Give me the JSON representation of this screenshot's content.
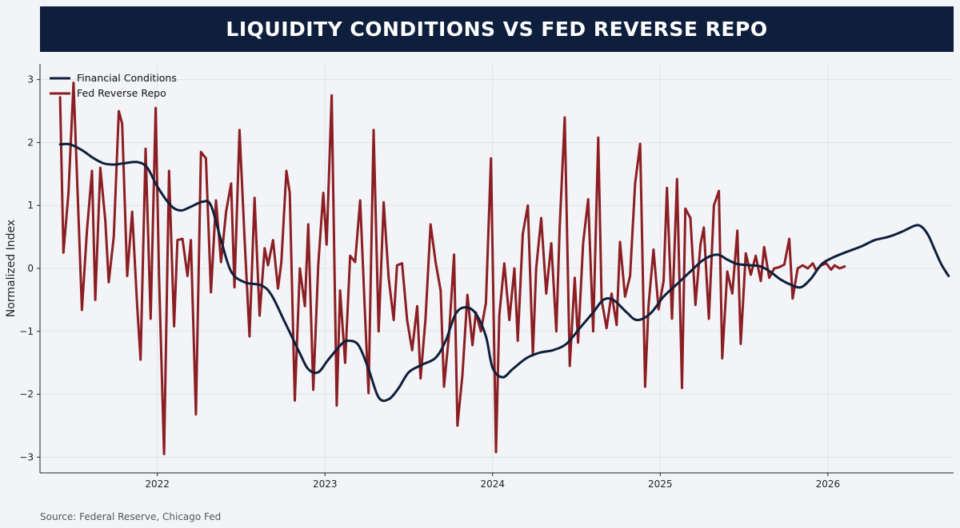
{
  "title": "LIQUIDITY CONDITIONS VS FED REVERSE REPO",
  "source": "Source: Federal Reserve, Chicago Fed",
  "colors": {
    "banner": "#0d1f3c",
    "financial": "#0d1f3c",
    "repo": "#8b1e22",
    "background": "#f2f4f7"
  },
  "chart_data": {
    "type": "line",
    "title": "LIQUIDITY CONDITIONS VS FED REVERSE REPO",
    "xlabel": "",
    "ylabel": "Normalized Index",
    "xlim": [
      2021.3,
      2026.75
    ],
    "ylim": [
      -3.25,
      3.25
    ],
    "xticks": [
      2022,
      2023,
      2024,
      2025,
      2026
    ],
    "xtick_labels": [
      "2022",
      "2023",
      "2024",
      "2025",
      "2026"
    ],
    "yticks": [
      -3,
      -2,
      -1,
      0,
      1,
      2,
      3
    ],
    "ytick_labels": [
      "−3",
      "−2",
      "−1",
      "0",
      "1",
      "2",
      "3"
    ],
    "grid": true,
    "legend_position": "top-left",
    "series": [
      {
        "name": "Financial Conditions",
        "color": "#0d1f3c",
        "points": [
          [
            2021.42,
            1.97
          ],
          [
            2021.48,
            1.97
          ],
          [
            2021.55,
            1.88
          ],
          [
            2021.62,
            1.75
          ],
          [
            2021.68,
            1.67
          ],
          [
            2021.74,
            1.65
          ],
          [
            2021.8,
            1.67
          ],
          [
            2021.88,
            1.69
          ],
          [
            2021.94,
            1.6
          ],
          [
            2022.0,
            1.3
          ],
          [
            2022.08,
            1.0
          ],
          [
            2022.14,
            0.92
          ],
          [
            2022.2,
            0.98
          ],
          [
            2022.27,
            1.06
          ],
          [
            2022.32,
            1.0
          ],
          [
            2022.38,
            0.45
          ],
          [
            2022.44,
            -0.05
          ],
          [
            2022.52,
            -0.22
          ],
          [
            2022.62,
            -0.27
          ],
          [
            2022.68,
            -0.42
          ],
          [
            2022.76,
            -0.85
          ],
          [
            2022.85,
            -1.35
          ],
          [
            2022.9,
            -1.6
          ],
          [
            2022.96,
            -1.65
          ],
          [
            2023.02,
            -1.45
          ],
          [
            2023.1,
            -1.2
          ],
          [
            2023.14,
            -1.15
          ],
          [
            2023.2,
            -1.22
          ],
          [
            2023.26,
            -1.6
          ],
          [
            2023.32,
            -2.05
          ],
          [
            2023.38,
            -2.08
          ],
          [
            2023.44,
            -1.9
          ],
          [
            2023.5,
            -1.65
          ],
          [
            2023.58,
            -1.53
          ],
          [
            2023.66,
            -1.42
          ],
          [
            2023.72,
            -1.15
          ],
          [
            2023.78,
            -0.72
          ],
          [
            2023.84,
            -0.62
          ],
          [
            2023.9,
            -0.72
          ],
          [
            2023.96,
            -1.08
          ],
          [
            2024.0,
            -1.58
          ],
          [
            2024.06,
            -1.73
          ],
          [
            2024.12,
            -1.6
          ],
          [
            2024.2,
            -1.43
          ],
          [
            2024.28,
            -1.34
          ],
          [
            2024.36,
            -1.3
          ],
          [
            2024.44,
            -1.2
          ],
          [
            2024.52,
            -0.95
          ],
          [
            2024.6,
            -0.7
          ],
          [
            2024.66,
            -0.5
          ],
          [
            2024.72,
            -0.5
          ],
          [
            2024.8,
            -0.7
          ],
          [
            2024.86,
            -0.82
          ],
          [
            2024.94,
            -0.72
          ],
          [
            2025.02,
            -0.45
          ],
          [
            2025.1,
            -0.25
          ],
          [
            2025.18,
            -0.05
          ],
          [
            2025.26,
            0.14
          ],
          [
            2025.34,
            0.22
          ],
          [
            2025.4,
            0.14
          ],
          [
            2025.46,
            0.07
          ],
          [
            2025.54,
            0.05
          ],
          [
            2025.6,
            0.03
          ],
          [
            2025.66,
            -0.06
          ],
          [
            2025.72,
            -0.18
          ],
          [
            2025.78,
            -0.26
          ],
          [
            2025.84,
            -0.3
          ],
          [
            2025.9,
            -0.16
          ],
          [
            2025.96,
            0.06
          ],
          [
            2026.02,
            0.16
          ],
          [
            2026.1,
            0.25
          ],
          [
            2026.2,
            0.35
          ],
          [
            2026.28,
            0.45
          ],
          [
            2026.36,
            0.5
          ],
          [
            2026.44,
            0.58
          ],
          [
            2026.52,
            0.68
          ],
          [
            2026.56,
            0.66
          ],
          [
            2026.6,
            0.52
          ],
          [
            2026.64,
            0.28
          ],
          [
            2026.68,
            0.05
          ],
          [
            2026.72,
            -0.12
          ]
        ]
      },
      {
        "name": "Fed Reverse Repo",
        "color": "#8b1e22",
        "points": [
          [
            2021.42,
            2.72
          ],
          [
            2021.44,
            0.25
          ],
          [
            2021.47,
            1.2
          ],
          [
            2021.5,
            2.95
          ],
          [
            2021.53,
            0.8
          ],
          [
            2021.55,
            -0.66
          ],
          [
            2021.58,
            0.6
          ],
          [
            2021.61,
            1.55
          ],
          [
            2021.63,
            -0.5
          ],
          [
            2021.66,
            1.6
          ],
          [
            2021.69,
            0.75
          ],
          [
            2021.71,
            -0.22
          ],
          [
            2021.74,
            0.5
          ],
          [
            2021.77,
            2.5
          ],
          [
            2021.79,
            2.3
          ],
          [
            2021.82,
            -0.12
          ],
          [
            2021.85,
            0.9
          ],
          [
            2021.88,
            -0.6
          ],
          [
            2021.9,
            -1.45
          ],
          [
            2021.93,
            1.9
          ],
          [
            2021.96,
            -0.8
          ],
          [
            2021.99,
            2.55
          ],
          [
            2022.01,
            -0.12
          ],
          [
            2022.04,
            -2.95
          ],
          [
            2022.07,
            1.55
          ],
          [
            2022.1,
            -0.92
          ],
          [
            2022.12,
            0.45
          ],
          [
            2022.15,
            0.47
          ],
          [
            2022.18,
            -0.12
          ],
          [
            2022.2,
            0.45
          ],
          [
            2022.23,
            -2.32
          ],
          [
            2022.26,
            1.85
          ],
          [
            2022.29,
            1.75
          ],
          [
            2022.32,
            -0.38
          ],
          [
            2022.35,
            1.08
          ],
          [
            2022.38,
            0.1
          ],
          [
            2022.41,
            0.9
          ],
          [
            2022.44,
            1.35
          ],
          [
            2022.46,
            -0.3
          ],
          [
            2022.49,
            2.2
          ],
          [
            2022.52,
            0.5
          ],
          [
            2022.55,
            -1.08
          ],
          [
            2022.58,
            1.12
          ],
          [
            2022.61,
            -0.75
          ],
          [
            2022.64,
            0.32
          ],
          [
            2022.66,
            0.05
          ],
          [
            2022.69,
            0.45
          ],
          [
            2022.72,
            -0.32
          ],
          [
            2022.74,
            0.1
          ],
          [
            2022.77,
            1.55
          ],
          [
            2022.79,
            1.2
          ],
          [
            2022.82,
            -2.1
          ],
          [
            2022.85,
            0.0
          ],
          [
            2022.88,
            -0.6
          ],
          [
            2022.9,
            0.7
          ],
          [
            2022.93,
            -1.93
          ],
          [
            2022.96,
            0.05
          ],
          [
            2022.99,
            1.2
          ],
          [
            2023.01,
            0.38
          ],
          [
            2023.04,
            2.75
          ],
          [
            2023.07,
            -2.18
          ],
          [
            2023.09,
            -0.35
          ],
          [
            2023.12,
            -1.5
          ],
          [
            2023.15,
            0.2
          ],
          [
            2023.18,
            0.1
          ],
          [
            2023.21,
            1.08
          ],
          [
            2023.24,
            -0.8
          ],
          [
            2023.26,
            -1.98
          ],
          [
            2023.29,
            2.2
          ],
          [
            2023.32,
            -1.0
          ],
          [
            2023.35,
            1.05
          ],
          [
            2023.38,
            -0.15
          ],
          [
            2023.41,
            -0.82
          ],
          [
            2023.43,
            0.05
          ],
          [
            2023.46,
            0.08
          ],
          [
            2023.49,
            -0.82
          ],
          [
            2023.52,
            -1.3
          ],
          [
            2023.55,
            -0.6
          ],
          [
            2023.57,
            -1.75
          ],
          [
            2023.6,
            -0.8
          ],
          [
            2023.63,
            0.7
          ],
          [
            2023.66,
            0.1
          ],
          [
            2023.69,
            -0.35
          ],
          [
            2023.71,
            -1.88
          ],
          [
            2023.74,
            -1.05
          ],
          [
            2023.77,
            0.22
          ],
          [
            2023.79,
            -2.5
          ],
          [
            2023.82,
            -1.7
          ],
          [
            2023.85,
            -0.42
          ],
          [
            2023.88,
            -1.22
          ],
          [
            2023.9,
            -0.7
          ],
          [
            2023.93,
            -1.0
          ],
          [
            2023.96,
            -0.55
          ],
          [
            2023.99,
            1.75
          ],
          [
            2024.02,
            -2.92
          ],
          [
            2024.04,
            -0.75
          ],
          [
            2024.07,
            0.08
          ],
          [
            2024.1,
            -0.82
          ],
          [
            2024.13,
            0.0
          ],
          [
            2024.15,
            -1.15
          ],
          [
            2024.18,
            0.55
          ],
          [
            2024.21,
            1.0
          ],
          [
            2024.24,
            -1.38
          ],
          [
            2024.26,
            0.0
          ],
          [
            2024.29,
            0.8
          ],
          [
            2024.32,
            -0.4
          ],
          [
            2024.35,
            0.4
          ],
          [
            2024.38,
            -1.0
          ],
          [
            2024.4,
            0.65
          ],
          [
            2024.43,
            2.4
          ],
          [
            2024.46,
            -1.55
          ],
          [
            2024.49,
            -0.15
          ],
          [
            2024.51,
            -1.18
          ],
          [
            2024.54,
            0.4
          ],
          [
            2024.57,
            1.1
          ],
          [
            2024.6,
            -1.0
          ],
          [
            2024.63,
            2.08
          ],
          [
            2024.65,
            -0.5
          ],
          [
            2024.68,
            -0.95
          ],
          [
            2024.71,
            -0.4
          ],
          [
            2024.74,
            -0.9
          ],
          [
            2024.76,
            0.42
          ],
          [
            2024.79,
            -0.45
          ],
          [
            2024.82,
            -0.12
          ],
          [
            2024.85,
            1.35
          ],
          [
            2024.88,
            1.98
          ],
          [
            2024.91,
            -1.88
          ],
          [
            2024.93,
            -0.6
          ],
          [
            2024.96,
            0.3
          ],
          [
            2024.99,
            -0.65
          ],
          [
            2025.02,
            -0.2
          ],
          [
            2025.04,
            1.28
          ],
          [
            2025.07,
            -0.8
          ],
          [
            2025.1,
            1.42
          ],
          [
            2025.13,
            -1.9
          ],
          [
            2025.15,
            0.95
          ],
          [
            2025.18,
            0.8
          ],
          [
            2025.21,
            -0.58
          ],
          [
            2025.24,
            0.38
          ],
          [
            2025.26,
            0.65
          ],
          [
            2025.29,
            -0.8
          ],
          [
            2025.32,
            1.0
          ],
          [
            2025.35,
            1.23
          ],
          [
            2025.37,
            -1.43
          ],
          [
            2025.4,
            -0.05
          ],
          [
            2025.43,
            -0.4
          ],
          [
            2025.46,
            0.6
          ],
          [
            2025.48,
            -1.2
          ],
          [
            2025.51,
            0.24
          ],
          [
            2025.54,
            -0.1
          ],
          [
            2025.57,
            0.2
          ],
          [
            2025.6,
            -0.2
          ],
          [
            2025.62,
            0.34
          ],
          [
            2025.65,
            -0.15
          ],
          [
            2025.68,
            0.0
          ],
          [
            2025.71,
            0.02
          ],
          [
            2025.74,
            0.06
          ],
          [
            2025.77,
            0.47
          ],
          [
            2025.79,
            -0.48
          ],
          [
            2025.82,
            0.0
          ],
          [
            2025.85,
            0.05
          ],
          [
            2025.88,
            0.0
          ],
          [
            2025.91,
            0.08
          ],
          [
            2025.93,
            -0.03
          ],
          [
            2025.96,
            0.05
          ],
          [
            2025.99,
            0.08
          ],
          [
            2026.02,
            -0.02
          ],
          [
            2026.04,
            0.05
          ],
          [
            2026.07,
            0.0
          ],
          [
            2026.1,
            0.03
          ]
        ]
      }
    ]
  }
}
